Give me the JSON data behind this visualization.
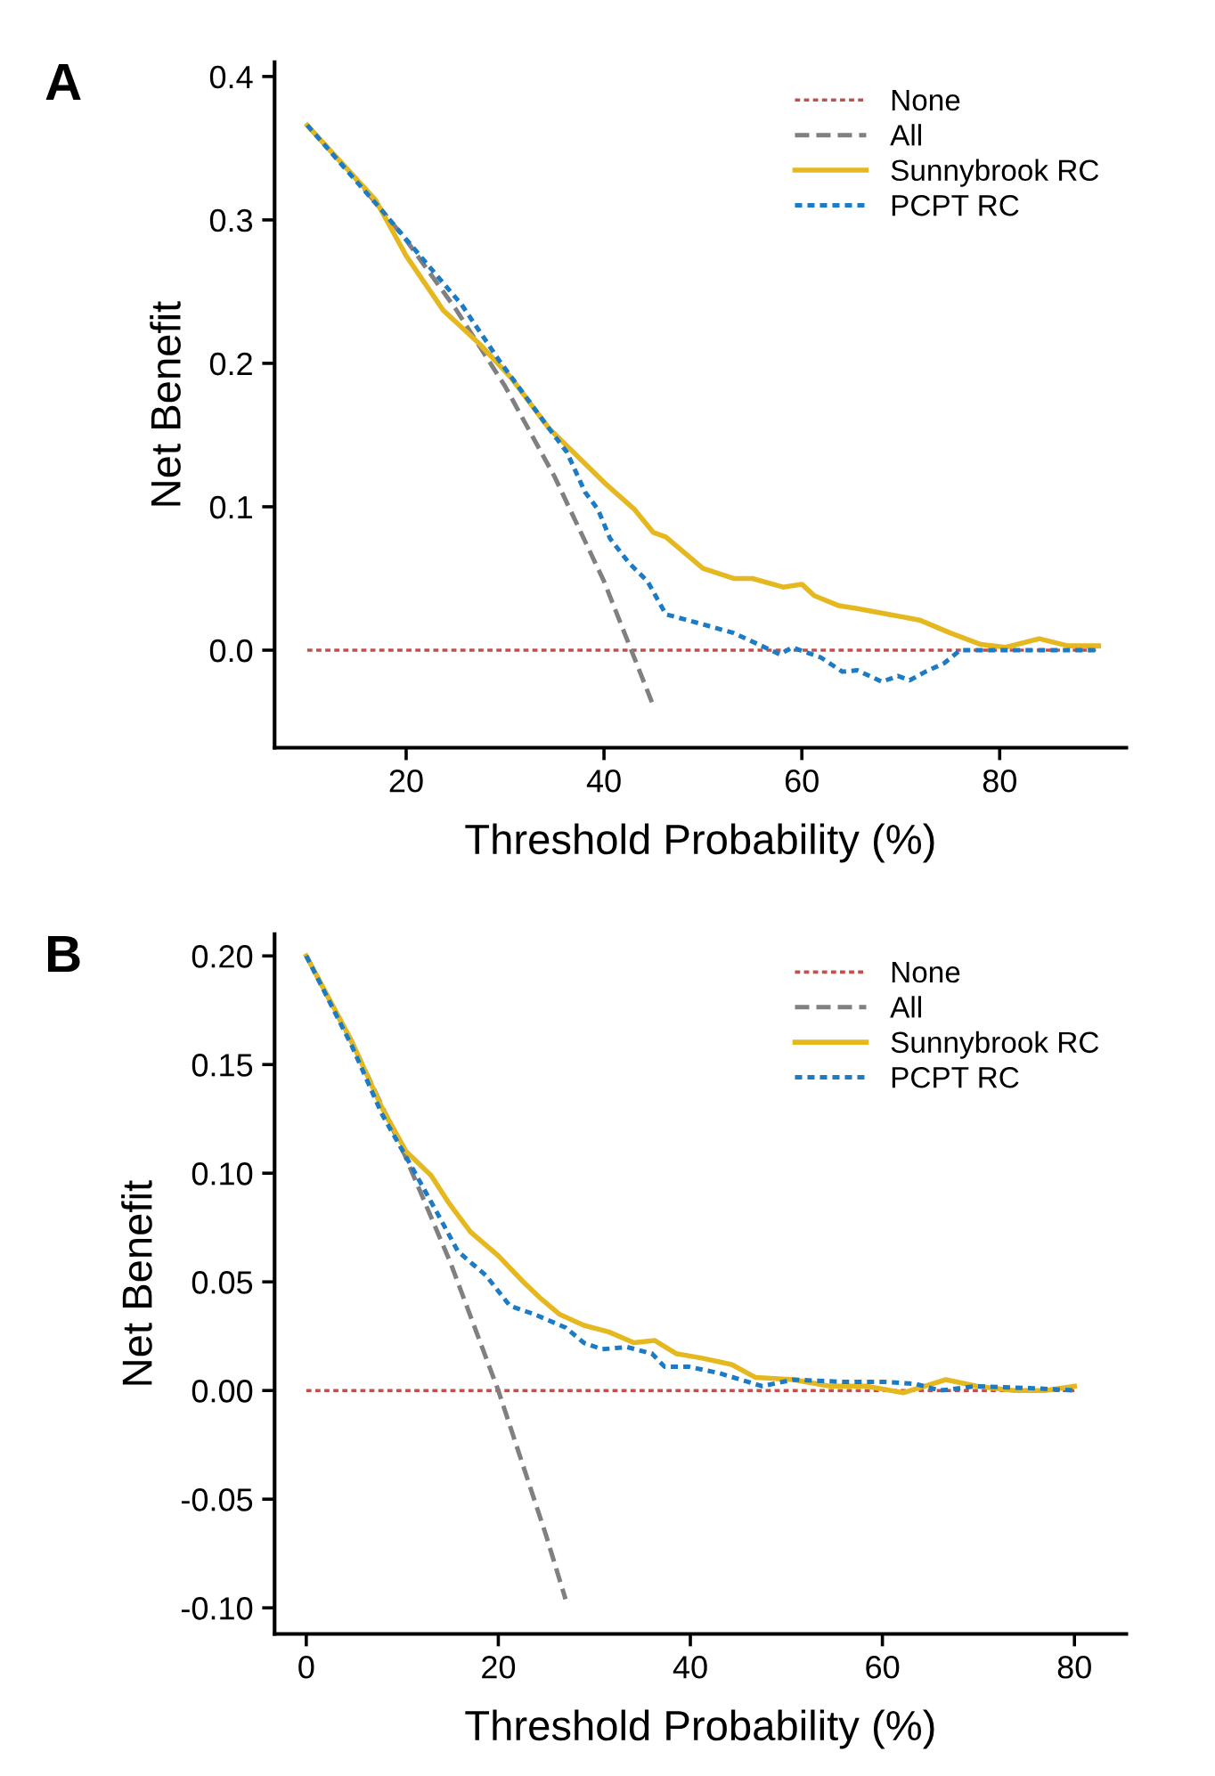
{
  "chart_data": [
    {
      "type": "line",
      "title": "A",
      "xlabel": "Threshold Probability (%)",
      "ylabel": "Net Benefit",
      "xlim": [
        6.7,
        92.8
      ],
      "xticks": [
        20,
        40,
        60,
        80
      ],
      "ylim": [
        -0.068,
        0.41
      ],
      "yticks": [
        {
          "value": 0,
          "label": "0.0"
        },
        0.1,
        0.2,
        0.3,
        0.4
      ],
      "grid": false,
      "legend": "top right",
      "series": [
        {
          "name": "None",
          "color": "#c0504d",
          "line_style": "dotted",
          "x": [
            10,
            90
          ],
          "values": [
            0,
            0
          ]
        },
        {
          "name": "All",
          "color": "#808080",
          "line_style": "dashed",
          "x": [
            10,
            15,
            20,
            25,
            30,
            35,
            40,
            45
          ],
          "values": [
            0.366,
            0.328,
            0.286,
            0.238,
            0.184,
            0.121,
            0.048,
            -0.039
          ]
        },
        {
          "name": "Sunnybrook RC",
          "color": "#e6b820",
          "line_style": "solid",
          "x": [
            10,
            16.9,
            20,
            23.75,
            27.5,
            30.6,
            34.4,
            37.5,
            40,
            43.1,
            45,
            46.25,
            50,
            53.1,
            55,
            58.1,
            60,
            61.25,
            63.75,
            65.6,
            68.75,
            71.9,
            75,
            78.1,
            80.6,
            84,
            86.9,
            90
          ],
          "values": [
            0.366,
            0.314,
            0.275,
            0.237,
            0.213,
            0.19,
            0.155,
            0.134,
            0.117,
            0.098,
            0.082,
            0.079,
            0.057,
            0.05,
            0.05,
            0.044,
            0.046,
            0.038,
            0.031,
            0.029,
            0.025,
            0.021,
            0.012,
            0.004,
            0.002,
            0.008,
            0.003,
            0.003
          ]
        },
        {
          "name": "PCPT RC",
          "color": "#1b7bc4",
          "line_style": "dotted",
          "x": [
            10,
            17.5,
            21.9,
            25.6,
            29.4,
            34.4,
            36.25,
            38.1,
            39.4,
            40.6,
            42.5,
            44.4,
            46.25,
            50,
            53.1,
            56.25,
            57.8,
            59,
            61.9,
            64.1,
            65.6,
            68.1,
            69.7,
            70.9,
            72.5,
            74.4,
            76,
            90
          ],
          "values": [
            0.366,
            0.307,
            0.271,
            0.241,
            0.202,
            0.155,
            0.138,
            0.11,
            0.098,
            0.078,
            0.061,
            0.048,
            0.025,
            0.018,
            0.012,
            0.002,
            -0.003,
            0.002,
            -0.005,
            -0.015,
            -0.014,
            -0.022,
            -0.018,
            -0.021,
            -0.015,
            -0.009,
            0,
            0
          ]
        }
      ]
    },
    {
      "type": "line",
      "title": "B",
      "xlabel": "Threshold Probability (%)",
      "ylabel": "Net Benefit",
      "xlim": [
        -3.3,
        85.4
      ],
      "xticks": [
        0,
        20,
        40,
        60,
        80
      ],
      "ylim": [
        -0.112,
        0.21
      ],
      "yticks": [
        {
          "value": -0.1,
          "label": "-0.10"
        },
        {
          "value": -0.05,
          "label": "-0.05"
        },
        {
          "value": 0,
          "label": "0.00"
        },
        {
          "value": 0.05,
          "label": "0.05"
        },
        {
          "value": 0.1,
          "label": "0.10"
        },
        {
          "value": 0.15,
          "label": "0.15"
        },
        {
          "value": 0.2,
          "label": "0.20"
        }
      ],
      "grid": false,
      "legend": "top right",
      "series": [
        {
          "name": "None",
          "color": "#c0504d",
          "line_style": "dotted",
          "x": [
            0,
            80
          ],
          "values": [
            0,
            0
          ]
        },
        {
          "name": "All",
          "color": "#808080",
          "line_style": "dashed",
          "x": [
            0,
            5,
            10,
            15,
            20,
            25,
            27
          ],
          "values": [
            0.2,
            0.158,
            0.111,
            0.059,
            0,
            -0.067,
            -0.096
          ]
        },
        {
          "name": "Sunnybrook RC",
          "color": "#e6b820",
          "line_style": "solid",
          "x": [
            0,
            4.7,
            7.9,
            10.4,
            13,
            14.9,
            17.1,
            20,
            22.6,
            24.5,
            26.4,
            28.9,
            31.5,
            34.1,
            36.3,
            38.5,
            41.1,
            44.3,
            46.8,
            50.7,
            54.5,
            58.3,
            62.2,
            64.4,
            66.6,
            69.8,
            73.7,
            76.9,
            80
          ],
          "values": [
            0.2,
            0.161,
            0.13,
            0.11,
            0.099,
            0.086,
            0.073,
            0.062,
            0.05,
            0.042,
            0.035,
            0.03,
            0.027,
            0.022,
            0.023,
            0.017,
            0.015,
            0.012,
            0.006,
            0.005,
            0.002,
            0.002,
            -0.001,
            0.002,
            0.005,
            0.002,
            0,
            0,
            0.002
          ]
        },
        {
          "name": "PCPT RC",
          "color": "#1b7bc4",
          "line_style": "dotted",
          "x": [
            0,
            4.7,
            7.9,
            11.1,
            13.6,
            15.8,
            18.7,
            21.2,
            23.8,
            27,
            28.9,
            30.8,
            33.4,
            36,
            37.3,
            39.8,
            43,
            47.5,
            50.7,
            55.8,
            60.2,
            63.5,
            66,
            69.8,
            76.2,
            80
          ],
          "values": [
            0.2,
            0.159,
            0.127,
            0.102,
            0.082,
            0.064,
            0.053,
            0.039,
            0.035,
            0.029,
            0.022,
            0.019,
            0.02,
            0.017,
            0.011,
            0.011,
            0.008,
            0.002,
            0.005,
            0.004,
            0.004,
            0.003,
            0,
            0.002,
            0.001,
            0
          ]
        }
      ]
    }
  ]
}
